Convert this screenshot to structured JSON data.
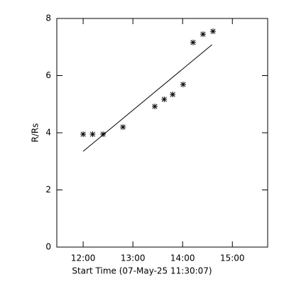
{
  "chart_data": {
    "type": "scatter",
    "xlabel": "Start Time (07-May-25 11:30:07)",
    "ylabel": "R/Rs",
    "x": [
      12.0,
      12.19,
      12.4,
      12.8,
      13.44,
      13.63,
      13.8,
      14.01,
      14.21,
      14.41,
      14.61
    ],
    "values": [
      3.95,
      3.95,
      3.95,
      4.2,
      4.92,
      5.17,
      5.34,
      5.69,
      7.16,
      7.45,
      7.55
    ],
    "fit": {
      "x": [
        12.0,
        14.59
      ],
      "values": [
        3.35,
        7.08
      ]
    },
    "color": "#000000",
    "xlim": [
      11.47,
      15.71
    ],
    "ylim": [
      0,
      8
    ],
    "xticks": [
      {
        "value": 12,
        "label": "12:00"
      },
      {
        "value": 13,
        "label": "13:00"
      },
      {
        "value": 14,
        "label": "14:00"
      },
      {
        "value": 15,
        "label": "15:00"
      }
    ],
    "yticks": [
      0,
      2,
      4,
      6,
      8
    ]
  }
}
